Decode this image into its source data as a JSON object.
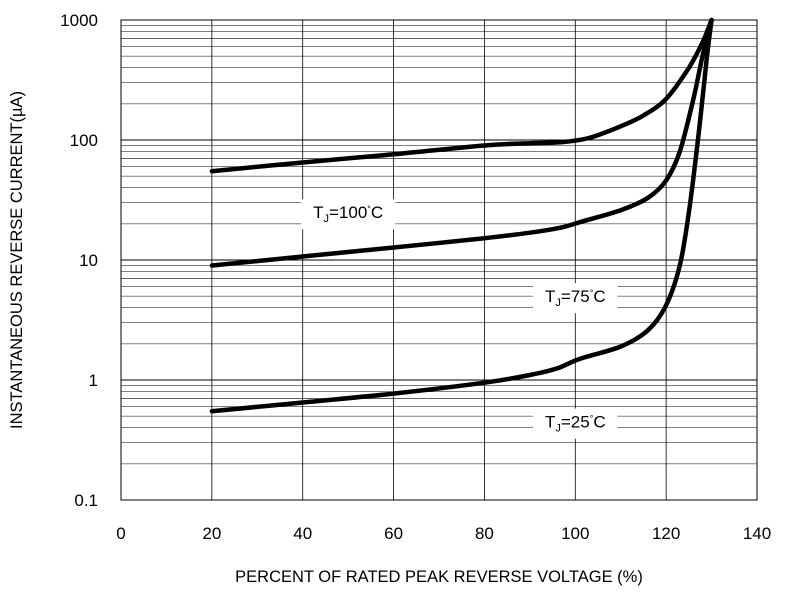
{
  "chart_data": {
    "type": "line",
    "title": "",
    "xlabel": "PERCENT OF RATED PEAK REVERSE VOLTAGE (%)",
    "ylabel": "INSTANTANEOUS REVERSE CURRENT(µA)",
    "x_scale": "linear",
    "y_scale": "log",
    "xlim": [
      0,
      140
    ],
    "ylim": [
      0.1,
      1000
    ],
    "x_ticks": [
      0,
      20,
      40,
      60,
      80,
      100,
      120,
      140
    ],
    "x_tick_labels": [
      "0",
      "20",
      "40",
      "60",
      "80",
      "100",
      "120",
      "140"
    ],
    "y_ticks": [
      0.1,
      1,
      10,
      100,
      1000
    ],
    "y_tick_labels": [
      "0.1",
      "1",
      "10",
      "100",
      "1000"
    ],
    "grid": true,
    "series": [
      {
        "name": "TJ=100°C",
        "label_main": "T",
        "label_sub": "J",
        "label_rest": "=100",
        "label_deg": "°",
        "label_unit": "C",
        "label_at": [
          25,
          50
        ],
        "x": [
          20,
          40,
          60,
          80,
          90,
          97,
          103,
          110,
          115,
          120,
          125,
          128,
          130
        ],
        "y": [
          55,
          65,
          76,
          90,
          94,
          96,
          104,
          130,
          160,
          220,
          400,
          650,
          1000
        ]
      },
      {
        "name": "TJ=75°C",
        "label_main": "T",
        "label_sub": "J",
        "label_rest": "=75",
        "label_deg": "°",
        "label_unit": "C",
        "label_at": [
          5,
          100
        ],
        "x": [
          20,
          40,
          60,
          80,
          90,
          97,
          102,
          110,
          116,
          120,
          123,
          126,
          128,
          130
        ],
        "y": [
          9,
          10.7,
          12.7,
          15.2,
          16.9,
          18.7,
          21.2,
          26,
          33,
          46,
          80,
          220,
          500,
          1000
        ]
      },
      {
        "name": "TJ=25°C",
        "label_main": "T",
        "label_sub": "J",
        "label_rest": "=25",
        "label_deg": "°",
        "label_unit": "C",
        "label_at": [
          0.45,
          100
        ],
        "x": [
          20,
          40,
          60,
          80,
          90,
          96,
          101,
          110,
          116,
          120,
          123,
          125,
          127,
          129,
          130
        ],
        "y": [
          0.55,
          0.65,
          0.77,
          0.95,
          1.1,
          1.25,
          1.5,
          1.9,
          2.6,
          4.2,
          9,
          25,
          100,
          500,
          1000
        ]
      }
    ]
  }
}
